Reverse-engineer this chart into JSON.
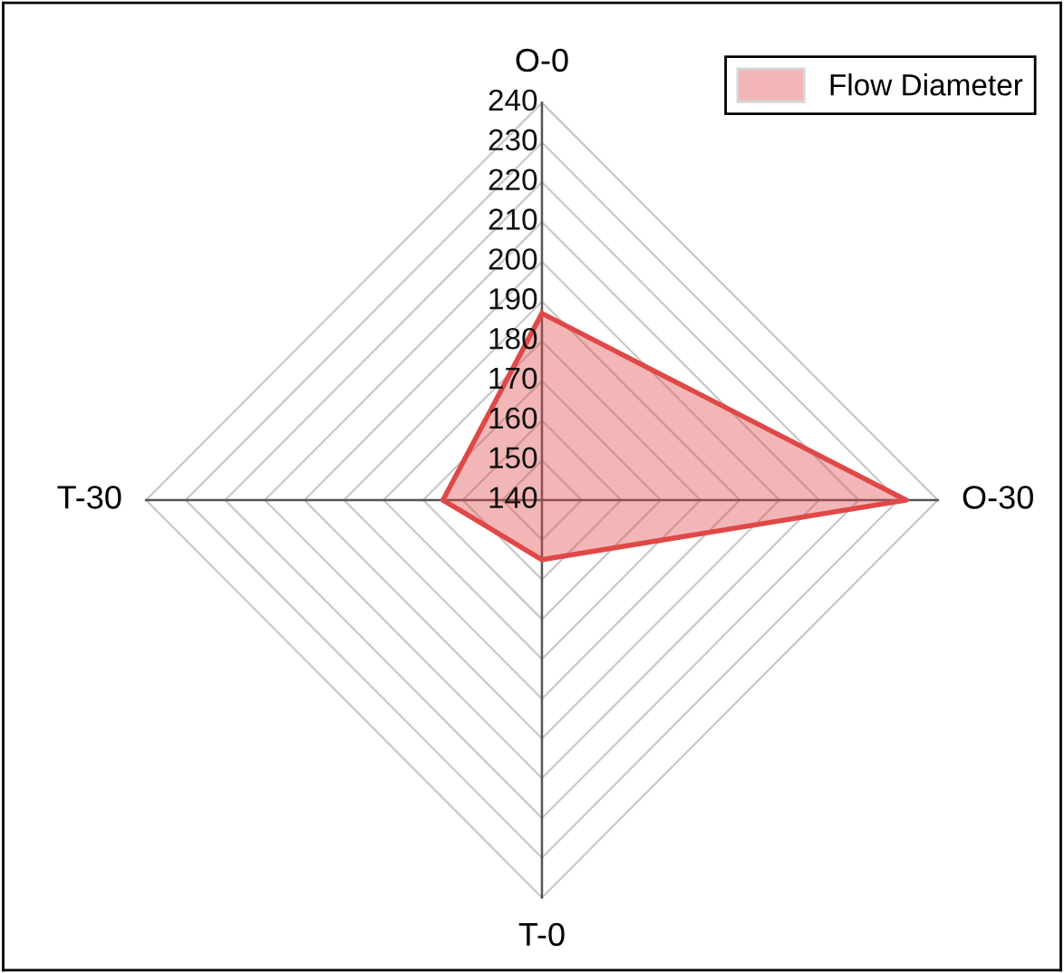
{
  "chart_data": {
    "type": "radar",
    "categories": [
      "O-0",
      "O-30",
      "T-0",
      "T-30"
    ],
    "series": [
      {
        "name": "Flow Diameter",
        "color": "#e04848",
        "values": [
          187,
          232,
          155,
          165
        ]
      }
    ],
    "ylim": [
      140,
      240
    ],
    "yticks": [
      140,
      150,
      160,
      170,
      180,
      190,
      200,
      210,
      220,
      230,
      240
    ],
    "grid": true,
    "legend": "top right"
  }
}
